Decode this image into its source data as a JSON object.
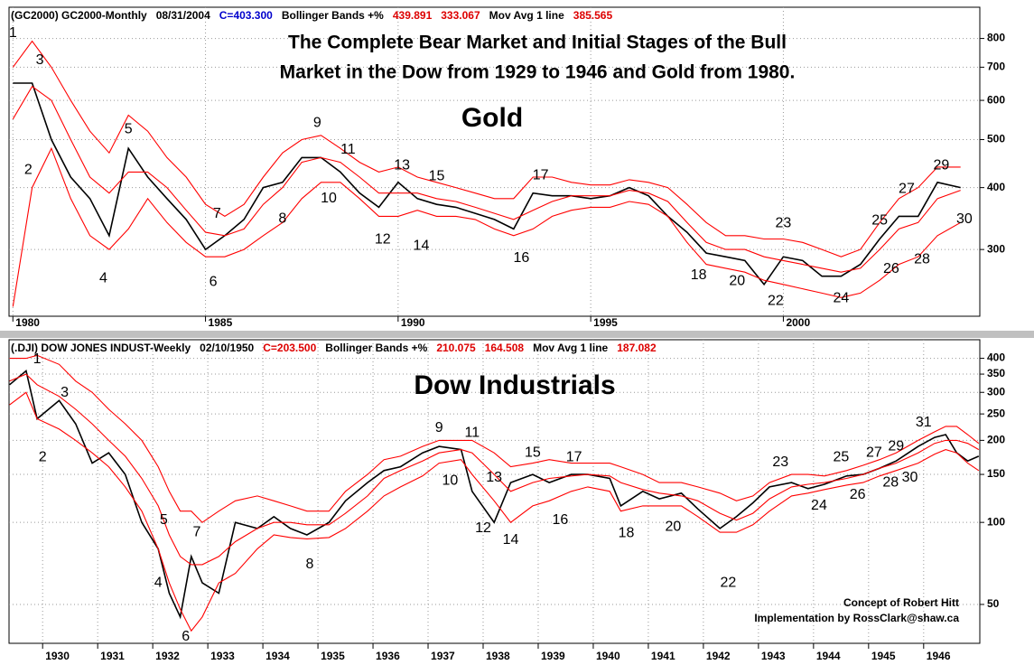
{
  "chart_data": [
    {
      "type": "line",
      "log_scale": true,
      "grid": true,
      "header": [
        {
          "text": "(GC2000) GC2000-Monthly",
          "color": "#000000"
        },
        {
          "text": "08/31/2004",
          "color": "#000000"
        },
        {
          "text": "C=403.300",
          "color": "#0000cc"
        },
        {
          "text": "Bollinger Bands +%",
          "color": "#000000"
        },
        {
          "text": "439.891",
          "color": "#dd0000"
        },
        {
          "text": "333.067",
          "color": "#dd0000"
        },
        {
          "text": "Mov Avg 1 line",
          "color": "#000000"
        },
        {
          "text": "385.565",
          "color": "#dd0000"
        }
      ],
      "title_lines": [
        "The Complete Bear Market and Initial Stages of the Bull",
        "Market in the Dow from 1929 to 1946 and Gold from 1980."
      ],
      "label": "Gold",
      "label_color": "#808000",
      "xlim": [
        1979.9,
        2005.1
      ],
      "xticks": [
        1980,
        1985,
        1990,
        1995,
        2000
      ],
      "ylim": [
        220,
        925
      ],
      "yticks": [
        300,
        400,
        500,
        600,
        700,
        800
      ],
      "x": [
        1980.0,
        1980.5,
        1981.0,
        1981.5,
        1982.0,
        1982.5,
        1983.0,
        1983.5,
        1984.0,
        1984.5,
        1985.0,
        1985.5,
        1986.0,
        1986.5,
        1987.0,
        1987.5,
        1988.0,
        1988.5,
        1989.0,
        1989.5,
        1990.0,
        1990.5,
        1991.0,
        1991.5,
        1992.0,
        1992.5,
        1993.0,
        1993.5,
        1994.0,
        1994.5,
        1995.0,
        1995.5,
        1996.0,
        1996.5,
        1997.0,
        1997.5,
        1998.0,
        1998.5,
        1999.0,
        1999.5,
        2000.0,
        2000.5,
        2001.0,
        2001.5,
        2002.0,
        2002.5,
        2003.0,
        2003.5,
        2004.0,
        2004.6
      ],
      "series": [
        {
          "color": "#000000",
          "values": [
            650,
            650,
            500,
            420,
            380,
            320,
            480,
            420,
            380,
            345,
            300,
            320,
            345,
            400,
            410,
            460,
            460,
            430,
            390,
            365,
            410,
            380,
            370,
            365,
            355,
            345,
            330,
            390,
            385,
            385,
            380,
            385,
            400,
            385,
            350,
            325,
            295,
            290,
            285,
            255,
            290,
            285,
            265,
            265,
            280,
            315,
            350,
            350,
            410,
            400
          ]
        },
        {
          "color": "#ff0000",
          "values": [
            700,
            790,
            700,
            600,
            520,
            470,
            560,
            520,
            460,
            420,
            370,
            350,
            370,
            420,
            470,
            500,
            510,
            480,
            450,
            430,
            440,
            420,
            410,
            400,
            390,
            380,
            380,
            420,
            420,
            410,
            405,
            405,
            415,
            410,
            400,
            370,
            340,
            320,
            320,
            315,
            315,
            310,
            300,
            290,
            300,
            340,
            380,
            400,
            440,
            440
          ]
        },
        {
          "color": "#ff0000",
          "values": [
            550,
            640,
            600,
            500,
            420,
            390,
            430,
            430,
            400,
            360,
            325,
            320,
            330,
            370,
            400,
            450,
            460,
            450,
            420,
            390,
            390,
            390,
            380,
            375,
            365,
            355,
            345,
            360,
            375,
            385,
            385,
            385,
            395,
            390,
            375,
            340,
            310,
            300,
            300,
            290,
            285,
            280,
            275,
            270,
            275,
            300,
            330,
            340,
            380,
            395
          ]
        },
        {
          "color": "#ff0000",
          "values": [
            230,
            400,
            480,
            380,
            320,
            300,
            330,
            380,
            340,
            310,
            290,
            290,
            300,
            320,
            340,
            380,
            410,
            410,
            380,
            350,
            350,
            360,
            350,
            350,
            345,
            330,
            320,
            330,
            350,
            360,
            365,
            365,
            375,
            370,
            350,
            310,
            280,
            275,
            270,
            260,
            255,
            250,
            245,
            240,
            245,
            260,
            280,
            290,
            320,
            340
          ]
        }
      ],
      "annotations": [
        {
          "text": "1",
          "x": 1980.0,
          "y": 820
        },
        {
          "text": "2",
          "x": 1980.4,
          "y": 434
        },
        {
          "text": "3",
          "x": 1980.7,
          "y": 722
        },
        {
          "text": "4",
          "x": 1982.35,
          "y": 262
        },
        {
          "text": "5",
          "x": 1983.0,
          "y": 524
        },
        {
          "text": "6",
          "x": 1985.2,
          "y": 258
        },
        {
          "text": "7",
          "x": 1985.3,
          "y": 354
        },
        {
          "text": "8",
          "x": 1987.0,
          "y": 346
        },
        {
          "text": "9",
          "x": 1987.9,
          "y": 540
        },
        {
          "text": "10",
          "x": 1988.2,
          "y": 380
        },
        {
          "text": "11",
          "x": 1988.7,
          "y": 477
        },
        {
          "text": "12",
          "x": 1989.6,
          "y": 314
        },
        {
          "text": "13",
          "x": 1990.1,
          "y": 443
        },
        {
          "text": "14",
          "x": 1990.6,
          "y": 305
        },
        {
          "text": "15",
          "x": 1991.0,
          "y": 421
        },
        {
          "text": "16",
          "x": 1993.2,
          "y": 288
        },
        {
          "text": "17",
          "x": 1993.7,
          "y": 423
        },
        {
          "text": "18",
          "x": 1997.8,
          "y": 266
        },
        {
          "text": "20",
          "x": 1998.8,
          "y": 259
        },
        {
          "text": "22",
          "x": 1999.8,
          "y": 236
        },
        {
          "text": "23",
          "x": 2000.0,
          "y": 339
        },
        {
          "text": "24",
          "x": 2001.5,
          "y": 239
        },
        {
          "text": "25",
          "x": 2002.5,
          "y": 343
        },
        {
          "text": "26",
          "x": 2002.8,
          "y": 274
        },
        {
          "text": "27",
          "x": 2003.2,
          "y": 397
        },
        {
          "text": "28",
          "x": 2003.6,
          "y": 286
        },
        {
          "text": "29",
          "x": 2004.1,
          "y": 443
        },
        {
          "text": "30",
          "x": 2004.7,
          "y": 345
        }
      ]
    },
    {
      "type": "line",
      "log_scale": true,
      "grid": true,
      "header": [
        {
          "text": "(.DJI) DOW JONES INDUST-Weekly",
          "color": "#000000"
        },
        {
          "text": "02/10/1950",
          "color": "#000000"
        },
        {
          "text": "C=203.500",
          "color": "#dd0000"
        },
        {
          "text": "Bollinger Bands +%",
          "color": "#000000"
        },
        {
          "text": "210.075",
          "color": "#dd0000"
        },
        {
          "text": "164.508",
          "color": "#dd0000"
        },
        {
          "text": "Mov Avg 1 line",
          "color": "#000000"
        },
        {
          "text": "187.082",
          "color": "#dd0000"
        }
      ],
      "label": "Dow Industrials",
      "label_color": "#000080",
      "credits": [
        "Concept of Robert Hitt",
        "Implementation by RossClark@shaw.ca"
      ],
      "credits_color": "#0000cc",
      "xlim": [
        1929.39,
        1947.02
      ],
      "xticks": [
        1930,
        1931,
        1932,
        1933,
        1934,
        1935,
        1936,
        1937,
        1938,
        1939,
        1940,
        1941,
        1942,
        1943,
        1944,
        1945,
        1946
      ],
      "ylim": [
        36,
        468
      ],
      "yticks": [
        50,
        100,
        150,
        200,
        250,
        300,
        350,
        400
      ],
      "x": [
        1929.4,
        1929.7,
        1929.9,
        1930.3,
        1930.6,
        1930.9,
        1931.2,
        1931.5,
        1931.8,
        1932.1,
        1932.3,
        1932.5,
        1932.7,
        1932.9,
        1933.2,
        1933.5,
        1933.9,
        1934.2,
        1934.5,
        1934.8,
        1935.2,
        1935.5,
        1935.9,
        1936.2,
        1936.5,
        1936.9,
        1937.2,
        1937.6,
        1937.8,
        1938.2,
        1938.5,
        1938.9,
        1939.2,
        1939.6,
        1939.9,
        1940.3,
        1940.5,
        1940.9,
        1941.2,
        1941.6,
        1941.9,
        1942.3,
        1942.6,
        1942.9,
        1943.2,
        1943.6,
        1943.9,
        1944.2,
        1944.6,
        1944.9,
        1945.2,
        1945.5,
        1945.9,
        1946.2,
        1946.4,
        1946.6,
        1946.8,
        1947.0
      ],
      "series": [
        {
          "color": "#000000",
          "values": [
            320,
            360,
            240,
            280,
            230,
            165,
            180,
            150,
            100,
            80,
            55,
            45,
            75,
            60,
            55,
            100,
            95,
            105,
            95,
            90,
            100,
            120,
            140,
            155,
            160,
            180,
            190,
            185,
            130,
            100,
            140,
            150,
            140,
            150,
            150,
            145,
            115,
            130,
            122,
            128,
            112,
            95,
            105,
            118,
            135,
            140,
            133,
            138,
            148,
            150,
            158,
            168,
            190,
            205,
            210,
            180,
            168,
            175
          ]
        },
        {
          "color": "#ff0000",
          "values": [
            400,
            400,
            410,
            380,
            330,
            300,
            260,
            230,
            200,
            160,
            130,
            110,
            110,
            100,
            110,
            120,
            125,
            120,
            115,
            110,
            110,
            130,
            150,
            170,
            175,
            190,
            200,
            200,
            200,
            180,
            160,
            165,
            170,
            165,
            165,
            165,
            160,
            150,
            140,
            140,
            135,
            128,
            120,
            125,
            140,
            150,
            150,
            148,
            155,
            162,
            170,
            180,
            200,
            215,
            225,
            225,
            210,
            195
          ]
        },
        {
          "color": "#ff0000",
          "values": [
            330,
            350,
            320,
            290,
            260,
            230,
            200,
            175,
            145,
            115,
            90,
            75,
            70,
            70,
            75,
            85,
            95,
            100,
            100,
            98,
            98,
            108,
            125,
            145,
            155,
            168,
            180,
            185,
            180,
            150,
            130,
            140,
            145,
            148,
            150,
            148,
            140,
            132,
            128,
            125,
            120,
            108,
            102,
            108,
            122,
            135,
            138,
            140,
            145,
            150,
            158,
            165,
            180,
            195,
            200,
            200,
            195,
            185
          ]
        },
        {
          "color": "#ff0000",
          "values": [
            270,
            300,
            240,
            220,
            200,
            180,
            160,
            135,
            110,
            80,
            60,
            48,
            40,
            45,
            60,
            65,
            80,
            90,
            88,
            87,
            88,
            95,
            110,
            125,
            135,
            148,
            165,
            170,
            150,
            120,
            100,
            115,
            120,
            130,
            135,
            130,
            110,
            115,
            115,
            115,
            105,
            92,
            92,
            98,
            110,
            125,
            128,
            132,
            137,
            140,
            148,
            155,
            165,
            178,
            185,
            180,
            165,
            155
          ]
        }
      ],
      "annotations": [
        {
          "text": "1",
          "x": 1929.9,
          "y": 396
        },
        {
          "text": "2",
          "x": 1930.0,
          "y": 173
        },
        {
          "text": "3",
          "x": 1930.4,
          "y": 299
        },
        {
          "text": "4",
          "x": 1932.1,
          "y": 60
        },
        {
          "text": "5",
          "x": 1932.2,
          "y": 102
        },
        {
          "text": "6",
          "x": 1932.6,
          "y": 38
        },
        {
          "text": "7",
          "x": 1932.8,
          "y": 92
        },
        {
          "text": "8",
          "x": 1934.85,
          "y": 70
        },
        {
          "text": "9",
          "x": 1937.2,
          "y": 222
        },
        {
          "text": "10",
          "x": 1937.4,
          "y": 142
        },
        {
          "text": "11",
          "x": 1937.8,
          "y": 213
        },
        {
          "text": "12",
          "x": 1938.0,
          "y": 95
        },
        {
          "text": "13",
          "x": 1938.2,
          "y": 146
        },
        {
          "text": "14",
          "x": 1938.5,
          "y": 86
        },
        {
          "text": "15",
          "x": 1938.9,
          "y": 180
        },
        {
          "text": "16",
          "x": 1939.4,
          "y": 102
        },
        {
          "text": "17",
          "x": 1939.65,
          "y": 173
        },
        {
          "text": "18",
          "x": 1940.6,
          "y": 91
        },
        {
          "text": "20",
          "x": 1941.45,
          "y": 96
        },
        {
          "text": "22",
          "x": 1942.45,
          "y": 60
        },
        {
          "text": "23",
          "x": 1943.4,
          "y": 166
        },
        {
          "text": "24",
          "x": 1944.1,
          "y": 115
        },
        {
          "text": "25",
          "x": 1944.5,
          "y": 173
        },
        {
          "text": "26",
          "x": 1944.8,
          "y": 126
        },
        {
          "text": "27",
          "x": 1945.1,
          "y": 180
        },
        {
          "text": "28",
          "x": 1945.4,
          "y": 140
        },
        {
          "text": "29",
          "x": 1945.5,
          "y": 190
        },
        {
          "text": "30",
          "x": 1945.75,
          "y": 146
        },
        {
          "text": "31",
          "x": 1946.0,
          "y": 232
        }
      ]
    }
  ]
}
